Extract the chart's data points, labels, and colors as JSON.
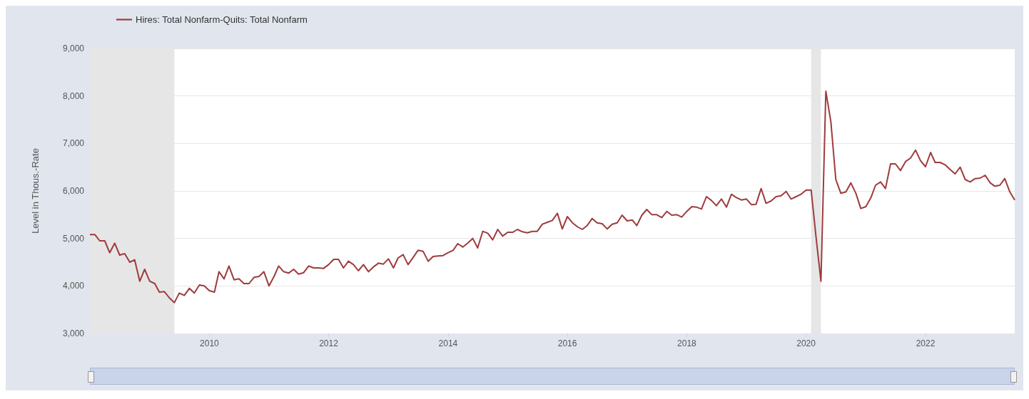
{
  "chart_data": {
    "type": "line",
    "ylabel": "Level in Thous.-Rate",
    "x": [
      "2008-01",
      "2008-02",
      "2008-03",
      "2008-04",
      "2008-05",
      "2008-06",
      "2008-07",
      "2008-08",
      "2008-09",
      "2008-10",
      "2008-11",
      "2008-12",
      "2009-01",
      "2009-02",
      "2009-03",
      "2009-04",
      "2009-05",
      "2009-06",
      "2009-07",
      "2009-08",
      "2009-09",
      "2009-10",
      "2009-11",
      "2009-12",
      "2010-01",
      "2010-02",
      "2010-03",
      "2010-04",
      "2010-05",
      "2010-06",
      "2010-07",
      "2010-08",
      "2010-09",
      "2010-10",
      "2010-11",
      "2010-12",
      "2011-01",
      "2011-02",
      "2011-03",
      "2011-04",
      "2011-05",
      "2011-06",
      "2011-07",
      "2011-08",
      "2011-09",
      "2011-10",
      "2011-11",
      "2011-12",
      "2012-01",
      "2012-02",
      "2012-03",
      "2012-04",
      "2012-05",
      "2012-06",
      "2012-07",
      "2012-08",
      "2012-09",
      "2012-10",
      "2012-11",
      "2012-12",
      "2013-01",
      "2013-02",
      "2013-03",
      "2013-04",
      "2013-05",
      "2013-06",
      "2013-07",
      "2013-08",
      "2013-09",
      "2013-10",
      "2013-11",
      "2013-12",
      "2014-01",
      "2014-02",
      "2014-03",
      "2014-04",
      "2014-05",
      "2014-06",
      "2014-07",
      "2014-08",
      "2014-09",
      "2014-10",
      "2014-11",
      "2014-12",
      "2015-01",
      "2015-02",
      "2015-03",
      "2015-04",
      "2015-05",
      "2015-06",
      "2015-07",
      "2015-08",
      "2015-09",
      "2015-10",
      "2015-11",
      "2015-12",
      "2016-01",
      "2016-02",
      "2016-03",
      "2016-04",
      "2016-05",
      "2016-06",
      "2016-07",
      "2016-08",
      "2016-09",
      "2016-10",
      "2016-11",
      "2016-12",
      "2017-01",
      "2017-02",
      "2017-03",
      "2017-04",
      "2017-05",
      "2017-06",
      "2017-07",
      "2017-08",
      "2017-09",
      "2017-10",
      "2017-11",
      "2017-12",
      "2018-01",
      "2018-02",
      "2018-03",
      "2018-04",
      "2018-05",
      "2018-06",
      "2018-07",
      "2018-08",
      "2018-09",
      "2018-10",
      "2018-11",
      "2018-12",
      "2019-01",
      "2019-02",
      "2019-03",
      "2019-04",
      "2019-05",
      "2019-06",
      "2019-07",
      "2019-08",
      "2019-09",
      "2019-10",
      "2019-11",
      "2019-12",
      "2020-01",
      "2020-02",
      "2020-03",
      "2020-04",
      "2020-05",
      "2020-06",
      "2020-07",
      "2020-08",
      "2020-09",
      "2020-10",
      "2020-11",
      "2020-12",
      "2021-01",
      "2021-02",
      "2021-03",
      "2021-04",
      "2021-05",
      "2021-06",
      "2021-07",
      "2021-08",
      "2021-09",
      "2021-10",
      "2021-11",
      "2021-12",
      "2022-01",
      "2022-02",
      "2022-03",
      "2022-04",
      "2022-05",
      "2022-06",
      "2022-07",
      "2022-08",
      "2022-09",
      "2022-10",
      "2022-11",
      "2022-12",
      "2023-01",
      "2023-02",
      "2023-03",
      "2023-04",
      "2023-05",
      "2023-06",
      "2023-07"
    ],
    "series": [
      {
        "name": "Hires: Total Nonfarm-Quits: Total Nonfarm",
        "color": "#9e3b3d",
        "values": [
          5080,
          5080,
          4950,
          4950,
          4700,
          4900,
          4650,
          4680,
          4500,
          4550,
          4100,
          4350,
          4100,
          4050,
          3870,
          3880,
          3750,
          3650,
          3850,
          3800,
          3950,
          3850,
          4020,
          4000,
          3900,
          3870,
          4300,
          4150,
          4420,
          4130,
          4150,
          4050,
          4050,
          4180,
          4200,
          4300,
          4000,
          4200,
          4420,
          4300,
          4270,
          4350,
          4250,
          4280,
          4420,
          4380,
          4380,
          4370,
          4450,
          4560,
          4560,
          4380,
          4520,
          4450,
          4320,
          4450,
          4300,
          4400,
          4480,
          4460,
          4570,
          4380,
          4590,
          4660,
          4450,
          4600,
          4750,
          4730,
          4520,
          4620,
          4630,
          4640,
          4700,
          4750,
          4890,
          4820,
          4900,
          5000,
          4800,
          5150,
          5110,
          4970,
          5190,
          5050,
          5130,
          5130,
          5190,
          5140,
          5120,
          5150,
          5150,
          5300,
          5340,
          5380,
          5530,
          5200,
          5460,
          5330,
          5250,
          5190,
          5270,
          5420,
          5330,
          5310,
          5200,
          5300,
          5330,
          5490,
          5370,
          5390,
          5270,
          5490,
          5610,
          5500,
          5500,
          5440,
          5570,
          5490,
          5500,
          5450,
          5570,
          5670,
          5660,
          5620,
          5880,
          5800,
          5690,
          5830,
          5660,
          5930,
          5860,
          5810,
          5830,
          5710,
          5720,
          6050,
          5740,
          5790,
          5880,
          5900,
          5990,
          5830,
          5880,
          5930,
          6020,
          6020,
          5060,
          4100,
          8100,
          7450,
          6240,
          5950,
          5980,
          6170,
          5950,
          5630,
          5670,
          5860,
          6120,
          6190,
          6050,
          6570,
          6570,
          6430,
          6620,
          6690,
          6860,
          6640,
          6510,
          6810,
          6600,
          6600,
          6550,
          6450,
          6360,
          6500,
          6240,
          6190,
          6260,
          6270,
          6330,
          6170,
          6100,
          6120,
          6260,
          5980,
          5810
        ]
      }
    ],
    "xlim": [
      "2008-01",
      "2023-07"
    ],
    "xticks": [
      {
        "value": "2010",
        "label": "2010"
      },
      {
        "value": "2012",
        "label": "2012"
      },
      {
        "value": "2014",
        "label": "2014"
      },
      {
        "value": "2016",
        "label": "2016"
      },
      {
        "value": "2018",
        "label": "2018"
      },
      {
        "value": "2020",
        "label": "2020"
      },
      {
        "value": "2022",
        "label": "2022"
      }
    ],
    "ylim": [
      3000,
      9000
    ],
    "yticks": [
      {
        "value": 3000,
        "label": "3,000"
      },
      {
        "value": 4000,
        "label": "4,000"
      },
      {
        "value": 5000,
        "label": "5,000"
      },
      {
        "value": 6000,
        "label": "6,000"
      },
      {
        "value": 7000,
        "label": "7,000"
      },
      {
        "value": 8000,
        "label": "8,000"
      },
      {
        "value": 9000,
        "label": "9,000"
      }
    ],
    "bands": [
      {
        "axis": "x",
        "from": "2008-01",
        "to": "2009-06",
        "color": "#e6e6e6"
      },
      {
        "axis": "x",
        "from": "2020-02",
        "to": "2020-04",
        "color": "#e6e6e6"
      }
    ],
    "grid": "y",
    "legend": "top left",
    "marker": "none",
    "line_style": "solid"
  }
}
